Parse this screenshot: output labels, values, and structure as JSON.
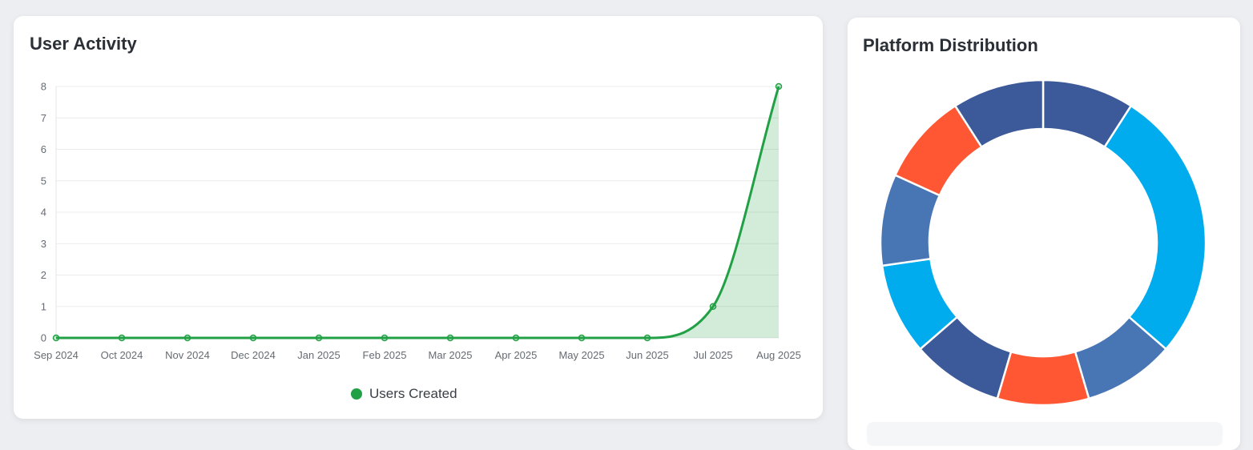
{
  "activity": {
    "title": "User Activity"
  },
  "platform": {
    "title": "Platform Distribution"
  },
  "chart_data": [
    {
      "type": "area",
      "title": "User Activity",
      "xlabel": "",
      "ylabel": "",
      "categories": [
        "Sep 2024",
        "Oct 2024",
        "Nov 2024",
        "Dec 2024",
        "Jan 2025",
        "Feb 2025",
        "Mar 2025",
        "Apr 2025",
        "May 2025",
        "Jun 2025",
        "Jul 2025",
        "Aug 2025"
      ],
      "series": [
        {
          "name": "Users Created",
          "values": [
            0,
            0,
            0,
            0,
            0,
            0,
            0,
            0,
            0,
            0,
            1,
            8
          ],
          "color": "#22a046"
        }
      ],
      "ylim": [
        0,
        8
      ],
      "yticks": [
        "0",
        "1",
        "2",
        "3",
        "4",
        "5",
        "6",
        "7",
        "8"
      ],
      "grid": true,
      "legend": "bottom-center"
    },
    {
      "type": "pie",
      "title": "Platform Distribution",
      "donut": true,
      "slices": [
        {
          "value": 1,
          "color": "#3c5a99"
        },
        {
          "value": 3,
          "color": "#00acee"
        },
        {
          "value": 1,
          "color": "#4875b4"
        },
        {
          "value": 1,
          "color": "#ff5733"
        },
        {
          "value": 1,
          "color": "#3c5a99"
        },
        {
          "value": 1,
          "color": "#00acee"
        },
        {
          "value": 1,
          "color": "#4875b4"
        },
        {
          "value": 1,
          "color": "#ff5733"
        },
        {
          "value": 1,
          "color": "#3c5a99"
        }
      ]
    }
  ]
}
